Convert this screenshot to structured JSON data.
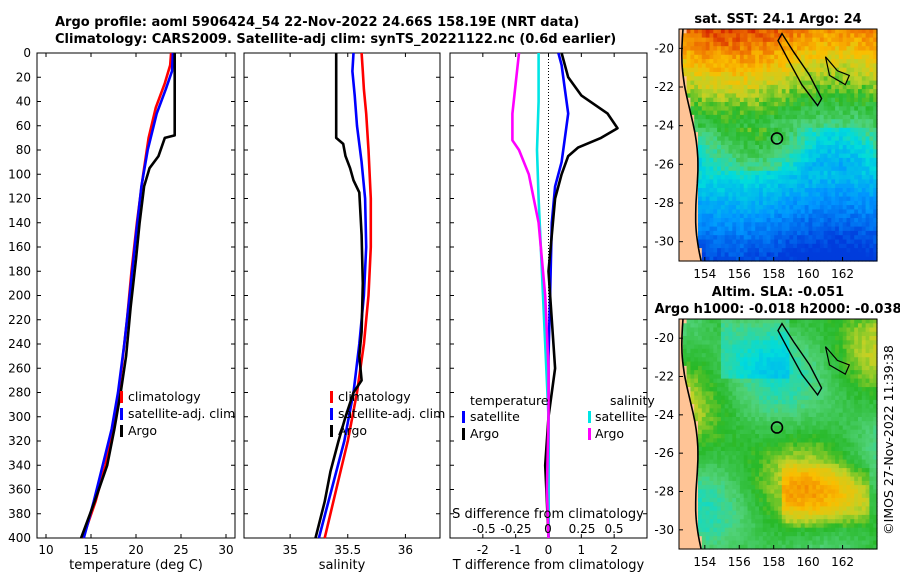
{
  "header": {
    "line1": "Argo profile: aoml 5906424_54 22-Nov-2022 24.66S 158.19E (NRT data)",
    "line2": "Climatology: CARS2009. Satellite-adj clim: synTS_20221122.nc (0.6d earlier)"
  },
  "colors": {
    "climatology": "#ff0000",
    "satellite": "#0000ff",
    "argo": "#000000",
    "sal_satellite": "#00e5e5",
    "sal_argo": "#ff00ff"
  },
  "chart_data": [
    {
      "type": "line",
      "name": "temperature",
      "xlabel": "temperature (deg C)",
      "xlim": [
        9,
        31
      ],
      "ylim": [
        400,
        0
      ],
      "xticks": [
        "10",
        "15",
        "20",
        "25",
        "30"
      ],
      "xtick_values": [
        10,
        15,
        20,
        25,
        30
      ],
      "yticks": [
        "0",
        "20",
        "40",
        "60",
        "80",
        "100",
        "120",
        "140",
        "160",
        "180",
        "200",
        "220",
        "240",
        "260",
        "280",
        "300",
        "320",
        "340",
        "360",
        "380",
        "400"
      ],
      "ytick_values": [
        0,
        20,
        40,
        60,
        80,
        100,
        120,
        140,
        160,
        180,
        200,
        220,
        240,
        260,
        280,
        300,
        320,
        340,
        360,
        380,
        400
      ],
      "legend": [
        "climatology",
        "satellite-adj. clim",
        "Argo"
      ],
      "series": [
        {
          "name": "climatology",
          "color": "#ff0000",
          "points": [
            [
              23.9,
              0
            ],
            [
              23.8,
              10
            ],
            [
              23.2,
              25
            ],
            [
              22.2,
              45
            ],
            [
              21.4,
              70
            ],
            [
              20.8,
              100
            ],
            [
              20.1,
              140
            ],
            [
              19.5,
              180
            ],
            [
              19.0,
              220
            ],
            [
              18.4,
              260
            ],
            [
              17.7,
              300
            ],
            [
              16.6,
              340
            ],
            [
              15.5,
              370
            ],
            [
              14.1,
              400
            ]
          ]
        },
        {
          "name": "satellite-adj. clim",
          "color": "#0000ff",
          "points": [
            [
              24.1,
              0
            ],
            [
              24.0,
              15
            ],
            [
              23.3,
              30
            ],
            [
              22.3,
              50
            ],
            [
              21.3,
              80
            ],
            [
              20.6,
              110
            ],
            [
              20.0,
              150
            ],
            [
              19.3,
              200
            ],
            [
              18.7,
              240
            ],
            [
              18.0,
              280
            ],
            [
              17.3,
              310
            ],
            [
              16.3,
              340
            ],
            [
              15.3,
              370
            ],
            [
              14.2,
              400
            ]
          ]
        },
        {
          "name": "Argo",
          "color": "#000000",
          "points": [
            [
              24.3,
              0
            ],
            [
              24.3,
              30
            ],
            [
              24.3,
              68
            ],
            [
              23.2,
              70
            ],
            [
              22.5,
              85
            ],
            [
              21.5,
              95
            ],
            [
              20.9,
              110
            ],
            [
              20.4,
              140
            ],
            [
              20.0,
              170
            ],
            [
              19.4,
              210
            ],
            [
              18.9,
              250
            ],
            [
              18.3,
              280
            ],
            [
              17.6,
              310
            ],
            [
              16.8,
              340
            ],
            [
              15.4,
              370
            ],
            [
              13.9,
              400
            ]
          ]
        }
      ]
    },
    {
      "type": "line",
      "name": "salinity",
      "xlabel": "salinity",
      "xlim": [
        34.6,
        36.3
      ],
      "ylim": [
        400,
        0
      ],
      "xticks": [
        "35",
        "35.5",
        "36"
      ],
      "xtick_values": [
        35,
        35.5,
        36
      ],
      "legend": [
        "climatology",
        "satellite-adj. clim",
        "Argo"
      ],
      "series": [
        {
          "name": "climatology",
          "color": "#ff0000",
          "points": [
            [
              35.62,
              0
            ],
            [
              35.63,
              15
            ],
            [
              35.64,
              30
            ],
            [
              35.66,
              50
            ],
            [
              35.68,
              80
            ],
            [
              35.7,
              120
            ],
            [
              35.7,
              160
            ],
            [
              35.68,
              200
            ],
            [
              35.64,
              240
            ],
            [
              35.58,
              280
            ],
            [
              35.5,
              320
            ],
            [
              35.4,
              360
            ],
            [
              35.3,
              400
            ]
          ]
        },
        {
          "name": "satellite-adj. clim",
          "color": "#0000ff",
          "points": [
            [
              35.55,
              0
            ],
            [
              35.54,
              15
            ],
            [
              35.56,
              35
            ],
            [
              35.58,
              60
            ],
            [
              35.62,
              90
            ],
            [
              35.65,
              120
            ],
            [
              35.66,
              160
            ],
            [
              35.64,
              200
            ],
            [
              35.6,
              240
            ],
            [
              35.55,
              280
            ],
            [
              35.47,
              320
            ],
            [
              35.36,
              360
            ],
            [
              35.25,
              400
            ]
          ]
        },
        {
          "name": "Argo",
          "color": "#000000",
          "points": [
            [
              35.4,
              0
            ],
            [
              35.4,
              40
            ],
            [
              35.4,
              70
            ],
            [
              35.46,
              75
            ],
            [
              35.48,
              85
            ],
            [
              35.52,
              95
            ],
            [
              35.55,
              105
            ],
            [
              35.6,
              115
            ],
            [
              35.62,
              150
            ],
            [
              35.63,
              190
            ],
            [
              35.62,
              230
            ],
            [
              35.6,
              250
            ],
            [
              35.62,
              270
            ],
            [
              35.55,
              280
            ],
            [
              35.48,
              300
            ],
            [
              35.42,
              320
            ],
            [
              35.35,
              345
            ],
            [
              35.3,
              370
            ],
            [
              35.22,
              400
            ]
          ]
        }
      ]
    },
    {
      "type": "line",
      "name": "difference",
      "xlabel": "T difference from climatology",
      "xlabel2": "S difference from climatology",
      "xlim": [
        -3,
        3
      ],
      "ylim": [
        400,
        0
      ],
      "xticks": [
        "-2",
        "-1",
        "0",
        "1",
        "2"
      ],
      "xtick_values": [
        -2,
        -1,
        0,
        1,
        2
      ],
      "s_xticks": [
        "-0.5",
        "-0.25",
        "0",
        "0.25",
        "0.5"
      ],
      "legend_temperature_title": "temperature",
      "legend_salinity_title": "salinity",
      "legend_temperature": [
        "satellite",
        "Argo"
      ],
      "legend_salinity": [
        "satellite",
        "Argo"
      ],
      "series": [
        {
          "name": "T satellite",
          "color": "#0000ff",
          "points": [
            [
              0.3,
              0
            ],
            [
              0.4,
              10
            ],
            [
              0.5,
              30
            ],
            [
              0.6,
              50
            ],
            [
              0.5,
              70
            ],
            [
              0.4,
              90
            ],
            [
              0.2,
              110
            ],
            [
              0.1,
              140
            ],
            [
              0.05,
              200
            ],
            [
              0.0,
              250
            ],
            [
              0.0,
              300
            ],
            [
              0.0,
              350
            ],
            [
              0.0,
              400
            ]
          ]
        },
        {
          "name": "T Argo",
          "color": "#000000",
          "points": [
            [
              0.4,
              0
            ],
            [
              0.6,
              20
            ],
            [
              1.0,
              35
            ],
            [
              1.8,
              50
            ],
            [
              2.1,
              62
            ],
            [
              1.6,
              70
            ],
            [
              0.9,
              78
            ],
            [
              0.6,
              85
            ],
            [
              0.4,
              100
            ],
            [
              0.2,
              120
            ],
            [
              0.0,
              180
            ],
            [
              0.1,
              220
            ],
            [
              0.2,
              260
            ],
            [
              0.0,
              300
            ],
            [
              -0.1,
              340
            ],
            [
              -0.05,
              370
            ],
            [
              0.0,
              400
            ]
          ]
        },
        {
          "name": "S satellite",
          "color": "#00e5e5",
          "points": [
            [
              -0.3,
              0
            ],
            [
              -0.3,
              40
            ],
            [
              -0.35,
              80
            ],
            [
              -0.3,
              120
            ],
            [
              -0.2,
              180
            ],
            [
              -0.1,
              240
            ],
            [
              0.0,
              300
            ],
            [
              0.0,
              400
            ]
          ]
        },
        {
          "name": "S Argo",
          "color": "#ff00ff",
          "points": [
            [
              -0.9,
              0
            ],
            [
              -1.0,
              25
            ],
            [
              -1.1,
              50
            ],
            [
              -1.1,
              72
            ],
            [
              -0.9,
              80
            ],
            [
              -0.6,
              100
            ],
            [
              -0.3,
              140
            ],
            [
              -0.1,
              200
            ],
            [
              0.0,
              260
            ],
            [
              0.0,
              300
            ],
            [
              -0.05,
              360
            ],
            [
              0.0,
              400
            ]
          ]
        }
      ]
    },
    {
      "type": "heatmap",
      "name": "sst_map",
      "title": "sat. SST: 24.1 Argo: 24",
      "xticks": [
        "154",
        "156",
        "158",
        "160",
        "162"
      ],
      "yticks": [
        "-20",
        "-22",
        "-24",
        "-26",
        "-28",
        "-30"
      ],
      "xlim": [
        152.5,
        164
      ],
      "ylim": [
        -31,
        -19
      ],
      "float_position": [
        158.19,
        -24.66
      ]
    },
    {
      "type": "heatmap",
      "name": "sla_map",
      "title1": "Altim. SLA: -0.051",
      "title2": "Argo h1000: -0.018 h2000: -0.038",
      "xticks": [
        "154",
        "156",
        "158",
        "160",
        "162"
      ],
      "yticks": [
        "-20",
        "-22",
        "-24",
        "-26",
        "-28",
        "-30"
      ],
      "xlim": [
        152.5,
        164
      ],
      "ylim": [
        -31,
        -19
      ],
      "float_position": [
        158.19,
        -24.66
      ]
    }
  ],
  "stamp": "©IMOS 27-Nov-2022 11:39:38"
}
